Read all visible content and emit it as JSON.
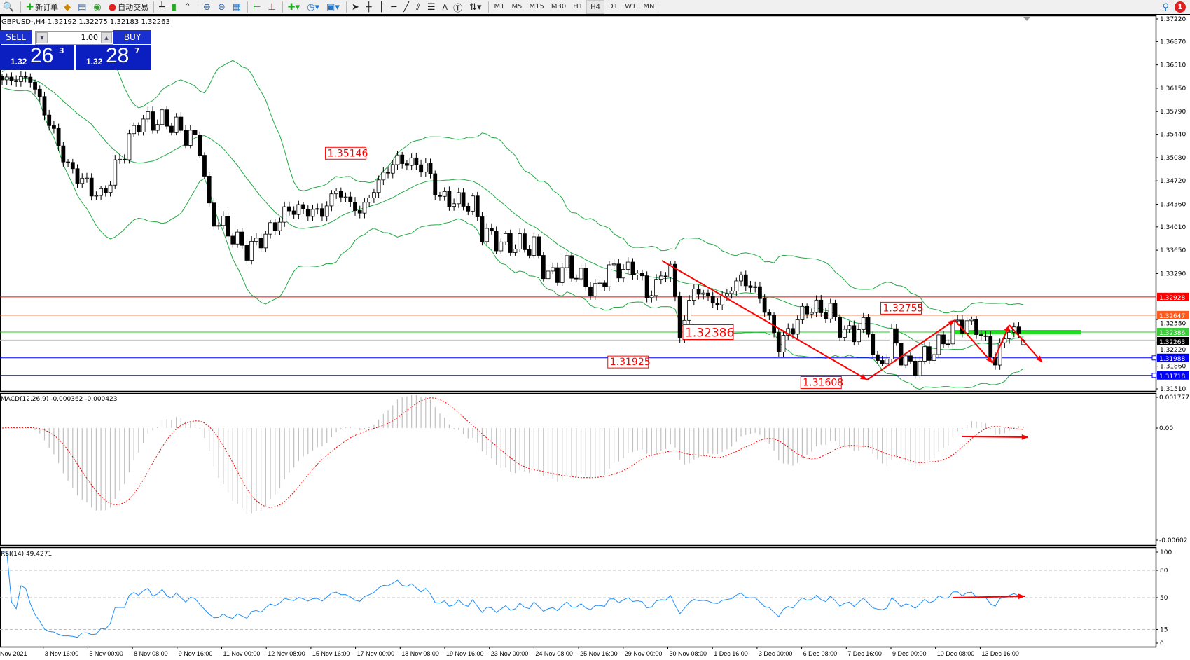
{
  "toolbar": {
    "items": [
      {
        "icon": "zoom-icon",
        "label": ""
      },
      {
        "icon": "new-order-icon",
        "label": "新订单"
      },
      {
        "icon": "metaeditor-icon",
        "label": ""
      },
      {
        "icon": "navigator-icon",
        "label": ""
      },
      {
        "icon": "signal-icon",
        "label": ""
      },
      {
        "icon": "autotrading-icon",
        "label": "自动交易"
      }
    ],
    "tools": [
      "bar-chart-icon",
      "candlestick-icon",
      "line-chart-icon",
      "zoom-in-icon",
      "zoom-out-icon",
      "tile-windows-icon",
      "chart-shift-icon",
      "autoscroll-icon",
      "indicators-icon",
      "periods-icon",
      "templates-icon",
      "cursor-icon",
      "crosshair-icon",
      "vertical-line-icon",
      "horizontal-line-icon",
      "trendline-icon",
      "fibonacci-icon",
      "channel-icon",
      "text-icon",
      "text-label-icon",
      "arrows-icon"
    ],
    "timeframes": [
      "M1",
      "M5",
      "M15",
      "M30",
      "H1",
      "H4",
      "D1",
      "W1",
      "MN"
    ],
    "active_timeframe": "H4",
    "text_tool_label": "A",
    "notification_count": "1"
  },
  "chart": {
    "title": "GBPUSD-,H4  1.32192 1.32275 1.32183 1.32263",
    "trade_panel": {
      "sell_label": "SELL",
      "buy_label": "BUY",
      "lot": "1.00",
      "sell_prefix": "1.32",
      "sell_big": "26",
      "sell_sup": "3",
      "buy_prefix": "1.32",
      "buy_big": "28",
      "buy_sup": "7"
    },
    "price_axis": [
      "1.37220",
      "1.36870",
      "1.36510",
      "1.36150",
      "1.35790",
      "1.35440",
      "1.35080",
      "1.34720",
      "1.34360",
      "1.34010",
      "1.33650",
      "1.33290",
      "1.32580",
      "1.32220",
      "1.31860",
      "1.31510"
    ],
    "horizontal_lines": [
      {
        "price": "1.32928",
        "color": "#ff0000",
        "tag_bg": "#ff0000"
      },
      {
        "price": "1.32647",
        "color": "#ff5a1e",
        "tag_bg": "#ff5a1e"
      },
      {
        "price": "1.32386",
        "color": "#22cc22",
        "tag_bg": "#3ccc3c"
      },
      {
        "price": "1.32263",
        "color": "#c0c0c0",
        "tag_bg": "#000000"
      },
      {
        "price": "1.31988",
        "color": "#0000ff",
        "tag_bg": "#0000ff"
      },
      {
        "price": "1.31718",
        "color": "#0000ff",
        "tag_bg": "#0000ff"
      }
    ],
    "annotations": [
      {
        "text": "1.35146",
        "price": 1.35146,
        "bar": 73,
        "size": "small"
      },
      {
        "text": "1.32386",
        "price": 1.32386,
        "bar": 150,
        "size": "large"
      },
      {
        "text": "1.31925",
        "price": 1.31925,
        "bar": 133,
        "size": "small"
      },
      {
        "text": "1.31608",
        "price": 1.31608,
        "bar": 174,
        "size": "small"
      },
      {
        "text": "1.32755",
        "price": 1.32755,
        "bar": 191,
        "size": "small"
      }
    ],
    "time_axis": [
      "Nov 2021",
      "3 Nov 16:00",
      "5 Nov 00:00",
      "8 Nov 08:00",
      "9 Nov 16:00",
      "11 Nov 00:00",
      "12 Nov 08:00",
      "15 Nov 16:00",
      "17 Nov 00:00",
      "18 Nov 08:00",
      "19 Nov 16:00",
      "23 Nov 00:00",
      "24 Nov 08:00",
      "25 Nov 16:00",
      "29 Nov 00:00",
      "30 Nov 08:00",
      "1 Dec 16:00",
      "3 Dec 00:00",
      "6 Dec 08:00",
      "7 Dec 16:00",
      "9 Dec 00:00",
      "10 Dec 08:00",
      "13 Dec 16:00"
    ],
    "colors": {
      "bands": "#22aa44",
      "arrows": "#ff0000",
      "support_bar": "#22dd22",
      "histogram": "#c0c0c0",
      "signal": "#ff0000",
      "rsi": "#1e90ff"
    }
  },
  "chart_data": {
    "type": "candlestick",
    "symbol": "GBPUSD-",
    "period": "H4",
    "last": {
      "open": 1.32192,
      "high": 1.32275,
      "low": 1.32183,
      "close": 1.32263
    },
    "ylim": [
      1.3151,
      1.3722
    ],
    "approx_close_path": [
      [
        0,
        1.3628
      ],
      [
        6,
        1.363
      ],
      [
        14,
        1.3493
      ],
      [
        21,
        1.3446
      ],
      [
        29,
        1.3564
      ],
      [
        35,
        1.3564
      ],
      [
        42,
        1.3529
      ],
      [
        44,
        1.3423
      ],
      [
        52,
        1.3364
      ],
      [
        56,
        1.3388
      ],
      [
        61,
        1.3429
      ],
      [
        68,
        1.3423
      ],
      [
        71,
        1.3458
      ],
      [
        76,
        1.3423
      ],
      [
        81,
        1.3482
      ],
      [
        84,
        1.3505
      ],
      [
        90,
        1.3493
      ],
      [
        93,
        1.3446
      ],
      [
        100,
        1.3435
      ],
      [
        102,
        1.3394
      ],
      [
        106,
        1.3376
      ],
      [
        113,
        1.337
      ],
      [
        116,
        1.3323
      ],
      [
        120,
        1.3341
      ],
      [
        126,
        1.33
      ],
      [
        129,
        1.3335
      ],
      [
        135,
        1.3335
      ],
      [
        137,
        1.3294
      ],
      [
        142,
        1.3341
      ],
      [
        144,
        1.3235
      ],
      [
        147,
        1.3306
      ],
      [
        152,
        1.3282
      ],
      [
        157,
        1.3323
      ],
      [
        161,
        1.3294
      ],
      [
        165,
        1.3218
      ],
      [
        171,
        1.3276
      ],
      [
        176,
        1.327
      ],
      [
        179,
        1.3235
      ],
      [
        184,
        1.3247
      ],
      [
        186,
        1.3177
      ],
      [
        189,
        1.3229
      ],
      [
        193,
        1.3182
      ],
      [
        200,
        1.3224
      ],
      [
        203,
        1.3253
      ],
      [
        207,
        1.3247
      ],
      [
        211,
        1.3194
      ],
      [
        214,
        1.3247
      ],
      [
        217,
        1.32263
      ]
    ],
    "indicators": {
      "bollinger": "green bands",
      "macd": {
        "label": "MACD(12,26,9) -0.000362 -0.000423",
        "axis": [
          "0.001777",
          "0.00",
          "-0.00602"
        ],
        "ylim": [
          -0.00602,
          0.001777
        ]
      },
      "rsi": {
        "label": "RSI(14) 49.4271",
        "axis": [
          "100",
          "80",
          "50",
          "15",
          "0"
        ],
        "levels": [
          80,
          50,
          15
        ],
        "ylim": [
          0,
          100
        ]
      }
    }
  }
}
